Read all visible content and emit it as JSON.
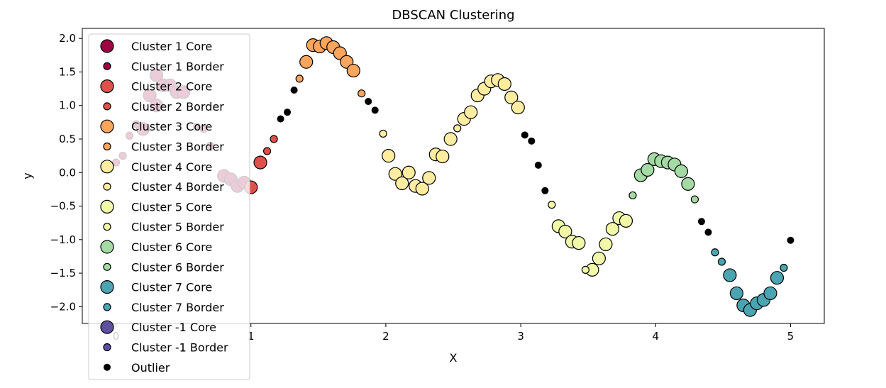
{
  "chart_data": {
    "type": "scatter",
    "title": "DBSCAN Clustering",
    "xlabel": "X",
    "ylabel": "y",
    "xlim": [
      -0.25,
      5.25
    ],
    "ylim": [
      -2.25,
      2.15
    ],
    "xticks": [
      0,
      1,
      2,
      3,
      4,
      5
    ],
    "xtick_labels": [
      "0",
      "1",
      "2",
      "3",
      "4",
      "5"
    ],
    "yticks": [
      2.0,
      1.5,
      1.0,
      0.5,
      0.0,
      -0.5,
      -1.0,
      -1.5,
      -2.0
    ],
    "ytick_labels": [
      "2.0",
      "1.5",
      "1.0",
      "0.5",
      "0.0",
      "−0.5",
      "−1.0",
      "−1.5",
      "−2.0"
    ],
    "grid": false,
    "legend_position": "upper-left",
    "legend": [
      {
        "label": "Cluster 1 Core",
        "color": "#9e0142",
        "kind": "core"
      },
      {
        "label": "Cluster 1 Border",
        "color": "#9e0142",
        "kind": "border"
      },
      {
        "label": "Cluster 2 Core",
        "color": "#e0504a",
        "kind": "core"
      },
      {
        "label": "Cluster 2 Border",
        "color": "#e0504a",
        "kind": "border"
      },
      {
        "label": "Cluster 3 Core",
        "color": "#fca55d",
        "kind": "core"
      },
      {
        "label": "Cluster 3 Border",
        "color": "#fca55d",
        "kind": "border"
      },
      {
        "label": "Cluster 4 Core",
        "color": "#feeda1",
        "kind": "core"
      },
      {
        "label": "Cluster 4 Border",
        "color": "#feeda1",
        "kind": "border"
      },
      {
        "label": "Cluster 5 Core",
        "color": "#f1f9a9",
        "kind": "core"
      },
      {
        "label": "Cluster 5 Border",
        "color": "#f1f9a9",
        "kind": "border"
      },
      {
        "label": "Cluster 6 Core",
        "color": "#a4daa4",
        "kind": "core"
      },
      {
        "label": "Cluster 6 Border",
        "color": "#a4daa4",
        "kind": "border"
      },
      {
        "label": "Cluster 7 Core",
        "color": "#4ba4b1",
        "kind": "core"
      },
      {
        "label": "Cluster 7 Border",
        "color": "#4ba4b1",
        "kind": "border"
      },
      {
        "label": "Cluster -1 Core",
        "color": "#5e4fa2",
        "kind": "core"
      },
      {
        "label": "Cluster -1 Border",
        "color": "#5e4fa2",
        "kind": "border"
      },
      {
        "label": "Outlier",
        "color": "#000000",
        "kind": "outlier"
      }
    ],
    "series": [
      {
        "name": "Cluster 1 Core",
        "color": "#9e0142",
        "kind": "core",
        "points": [
          [
            0.2,
            0.65
          ],
          [
            0.25,
            1.15
          ],
          [
            0.3,
            1.0
          ],
          [
            0.3,
            1.45
          ],
          [
            0.35,
            1.3
          ],
          [
            0.4,
            1.3
          ],
          [
            0.45,
            1.2
          ],
          [
            0.5,
            1.2
          ],
          [
            0.8,
            -0.05
          ],
          [
            0.85,
            -0.1
          ],
          [
            0.9,
            -0.2
          ],
          [
            0.95,
            -0.15
          ]
        ]
      },
      {
        "name": "Cluster 1 Border",
        "color": "#9e0142",
        "kind": "border",
        "points": [
          [
            0.0,
            0.15
          ],
          [
            0.05,
            0.25
          ],
          [
            0.1,
            0.55
          ],
          [
            0.15,
            0.72
          ],
          [
            0.6,
            0.68
          ],
          [
            0.65,
            0.65
          ],
          [
            0.7,
            0.4
          ]
        ]
      },
      {
        "name": "Cluster 2 Core",
        "color": "#e0504a",
        "kind": "core",
        "points": [
          [
            1.0,
            -0.22
          ],
          [
            1.07,
            0.15
          ]
        ]
      },
      {
        "name": "Cluster 2 Border",
        "color": "#e0504a",
        "kind": "border",
        "points": [
          [
            1.12,
            0.32
          ],
          [
            1.17,
            0.5
          ]
        ]
      },
      {
        "name": "Cluster 3 Core",
        "color": "#fca55d",
        "kind": "core",
        "points": [
          [
            1.41,
            1.65
          ],
          [
            1.46,
            1.9
          ],
          [
            1.51,
            1.88
          ],
          [
            1.56,
            1.93
          ],
          [
            1.61,
            1.87
          ],
          [
            1.66,
            1.78
          ],
          [
            1.71,
            1.65
          ],
          [
            1.76,
            1.52
          ]
        ]
      },
      {
        "name": "Cluster 3 Border",
        "color": "#fca55d",
        "kind": "border",
        "points": [
          [
            1.36,
            1.4
          ],
          [
            1.82,
            1.18
          ]
        ]
      },
      {
        "name": "Cluster 4 Core",
        "color": "#feeda1",
        "kind": "core",
        "points": [
          [
            2.02,
            0.25
          ],
          [
            2.07,
            -0.02
          ],
          [
            2.12,
            -0.16
          ],
          [
            2.17,
            0.0
          ],
          [
            2.22,
            -0.2
          ],
          [
            2.27,
            -0.24
          ],
          [
            2.32,
            -0.08
          ],
          [
            2.37,
            0.27
          ],
          [
            2.42,
            0.24
          ],
          [
            2.48,
            0.5
          ],
          [
            2.58,
            0.8
          ],
          [
            2.63,
            0.9
          ],
          [
            2.68,
            1.15
          ],
          [
            2.73,
            1.25
          ],
          [
            2.78,
            1.36
          ],
          [
            2.83,
            1.38
          ],
          [
            2.88,
            1.32
          ],
          [
            2.93,
            1.12
          ],
          [
            2.98,
            0.97
          ]
        ]
      },
      {
        "name": "Cluster 4 Border",
        "color": "#feeda1",
        "kind": "border",
        "points": [
          [
            1.98,
            0.58
          ],
          [
            2.53,
            0.66
          ]
        ]
      },
      {
        "name": "Cluster 5 Core",
        "color": "#f1f9a9",
        "kind": "core",
        "points": [
          [
            3.28,
            -0.8
          ],
          [
            3.33,
            -0.88
          ],
          [
            3.38,
            -1.03
          ],
          [
            3.43,
            -1.05
          ],
          [
            3.53,
            -1.45
          ],
          [
            3.58,
            -1.28
          ],
          [
            3.63,
            -1.07
          ],
          [
            3.68,
            -0.84
          ],
          [
            3.73,
            -0.68
          ],
          [
            3.78,
            -0.72
          ]
        ]
      },
      {
        "name": "Cluster 5 Border",
        "color": "#f1f9a9",
        "kind": "border",
        "points": [
          [
            3.23,
            -0.48
          ],
          [
            3.48,
            -1.45
          ]
        ]
      },
      {
        "name": "Cluster 6 Core",
        "color": "#a4daa4",
        "kind": "core",
        "points": [
          [
            3.89,
            -0.04
          ],
          [
            3.94,
            0.04
          ],
          [
            3.99,
            0.2
          ],
          [
            4.04,
            0.17
          ],
          [
            4.09,
            0.15
          ],
          [
            4.14,
            0.12
          ],
          [
            4.19,
            0.02
          ],
          [
            4.24,
            -0.17
          ]
        ]
      },
      {
        "name": "Cluster 6 Border",
        "color": "#a4daa4",
        "kind": "border",
        "points": [
          [
            3.83,
            -0.34
          ],
          [
            4.29,
            -0.4
          ]
        ]
      },
      {
        "name": "Cluster 7 Core",
        "color": "#4ba4b1",
        "kind": "core",
        "points": [
          [
            4.55,
            -1.53
          ],
          [
            4.6,
            -1.8
          ],
          [
            4.65,
            -1.98
          ],
          [
            4.7,
            -2.05
          ],
          [
            4.75,
            -1.95
          ],
          [
            4.8,
            -1.9
          ],
          [
            4.85,
            -1.8
          ],
          [
            4.9,
            -1.57
          ]
        ]
      },
      {
        "name": "Cluster 7 Border",
        "color": "#4ba4b1",
        "kind": "border",
        "points": [
          [
            4.44,
            -1.19
          ],
          [
            4.49,
            -1.33
          ],
          [
            4.95,
            -1.42
          ]
        ]
      },
      {
        "name": "Outlier",
        "color": "#000000",
        "kind": "outlier",
        "points": [
          [
            1.22,
            0.8
          ],
          [
            1.27,
            0.9
          ],
          [
            1.32,
            1.23
          ],
          [
            1.87,
            1.06
          ],
          [
            1.92,
            0.93
          ],
          [
            3.03,
            0.56
          ],
          [
            3.08,
            0.47
          ],
          [
            3.13,
            0.11
          ],
          [
            3.18,
            -0.27
          ],
          [
            4.34,
            -0.73
          ],
          [
            4.39,
            -0.89
          ],
          [
            5.0,
            -1.01
          ]
        ]
      }
    ]
  }
}
